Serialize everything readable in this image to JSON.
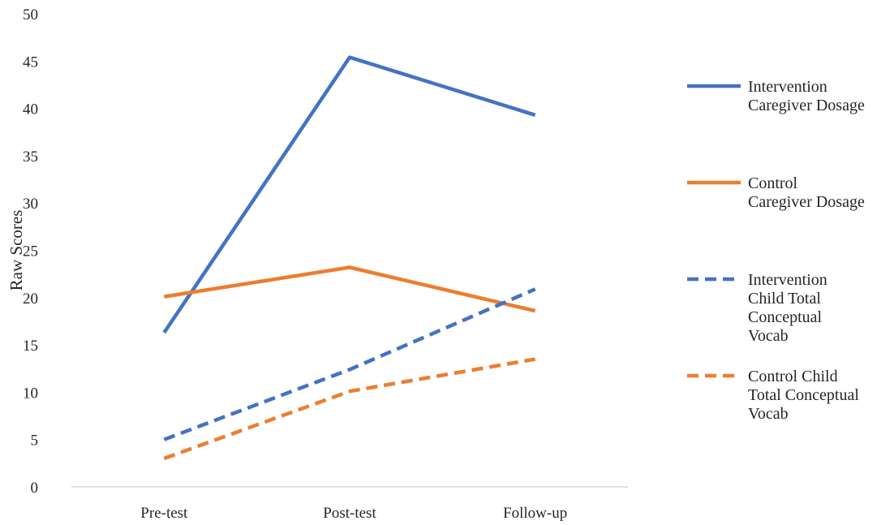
{
  "chart_data": {
    "type": "line",
    "title": "",
    "xlabel": "",
    "ylabel": "Raw Scores",
    "categories": [
      "Pre-test",
      "Post-test",
      "Follow-up"
    ],
    "ylim": [
      0,
      50
    ],
    "yticks": [
      0,
      5,
      10,
      15,
      20,
      25,
      30,
      35,
      40,
      45,
      50
    ],
    "grid": false,
    "legend_position": "right",
    "series": [
      {
        "name": "Intervention Caregiver Dosage",
        "legend_lines": [
          "Intervention",
          "Caregiver Dosage"
        ],
        "values": [
          16.3,
          45.4,
          39.3
        ],
        "color": "#4472C4",
        "dash": "solid"
      },
      {
        "name": "Control Caregiver Dosage",
        "legend_lines": [
          "Control",
          "Caregiver Dosage"
        ],
        "values": [
          20.1,
          23.2,
          18.6
        ],
        "color": "#ED7D31",
        "dash": "solid"
      },
      {
        "name": "Intervention Child Total Conceptual Vocab",
        "legend_lines": [
          "Intervention",
          "Child Total",
          "Conceptual",
          "Vocab"
        ],
        "values": [
          5.0,
          12.4,
          20.9
        ],
        "color": "#4472C4",
        "dash": "dashed"
      },
      {
        "name": "Control Child Total Conceptual Vocab",
        "legend_lines": [
          "Control Child",
          "Total Conceptual",
          "Vocab"
        ],
        "values": [
          3.0,
          10.1,
          13.5
        ],
        "color": "#ED7D31",
        "dash": "dashed"
      }
    ]
  }
}
